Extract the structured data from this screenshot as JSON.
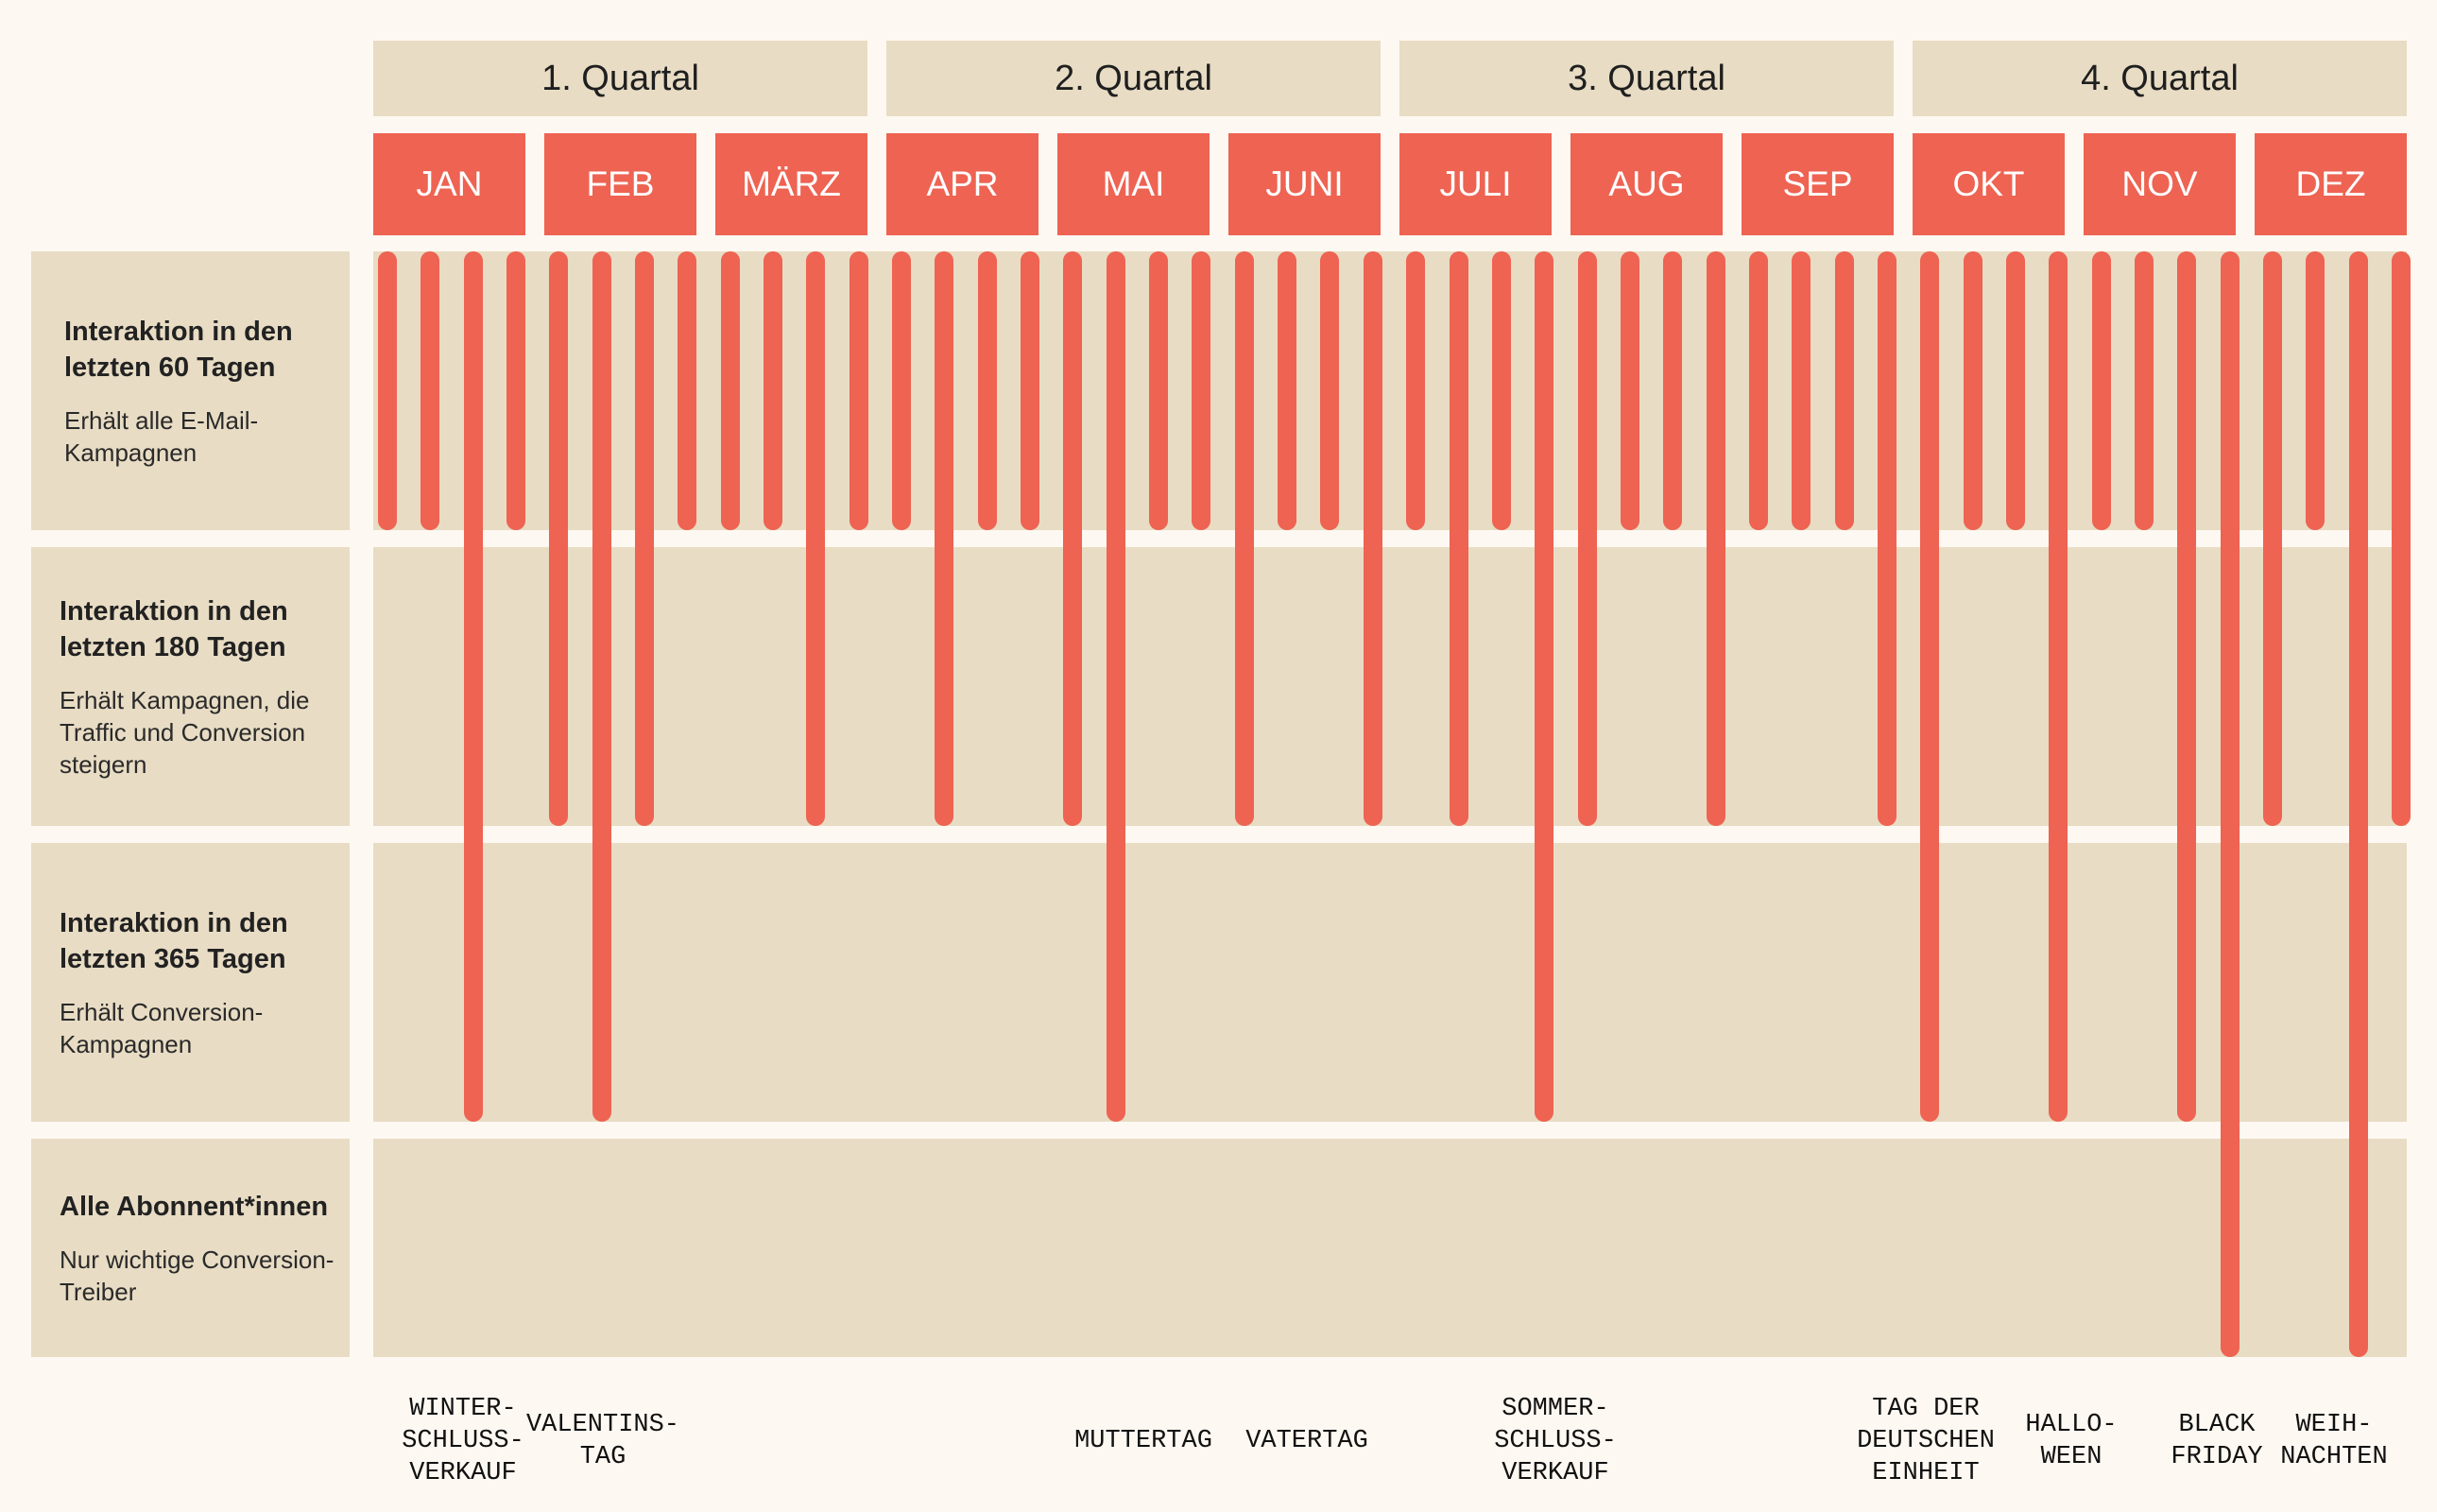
{
  "quarters": [
    "1. Quartal",
    "2. Quartal",
    "3. Quartal",
    "4. Quartal"
  ],
  "months": [
    "JAN",
    "FEB",
    "MÄRZ",
    "APR",
    "MAI",
    "JUNI",
    "JULI",
    "AUG",
    "SEP",
    "OKT",
    "NOV",
    "DEZ"
  ],
  "rows": [
    {
      "title": "Interaktion in den letzten 60 Tagen",
      "description": "Erhält alle E-Mail-Kampagnen"
    },
    {
      "title": "Interaktion in den letzten 180 Tagen",
      "description": "Erhält Kampagnen, die Traffic und Conversion steigern"
    },
    {
      "title": "Interaktion in den letzten 365 Tagen",
      "description": "Erhält Conversion-Kampagnen"
    },
    {
      "title": "Alle Abonnent*innen",
      "description": "Nur wichtige Conversion-Treiber"
    }
  ],
  "events": [
    {
      "label": "WINTER-\nSCHLUSS-\nVERKAUF"
    },
    {
      "label": "VALENTINS-\nTAG"
    },
    {
      "label": "MUTTERTAG"
    },
    {
      "label": "VATERTAG"
    },
    {
      "label": "SOMMER-\nSCHLUSS-\nVERKAUF"
    },
    {
      "label": "TAG DER\nDEUTSCHEN\nEINHEIT"
    },
    {
      "label": "HALLO-\nWEEN"
    },
    {
      "label": "BLACK\nFRIDAY"
    },
    {
      "label": "WEIH-\nNACHTEN"
    }
  ],
  "chart_data": {
    "type": "timeline",
    "columns": 48,
    "segments": [
      "Interaktion in den letzten 60 Tagen",
      "Interaktion in den letzten 180 Tagen",
      "Interaktion in den letzten 365 Tagen",
      "Alle Abonnent*innen"
    ],
    "campaign_reach": [
      1,
      1,
      3,
      1,
      2,
      3,
      2,
      1,
      1,
      1,
      2,
      1,
      1,
      2,
      1,
      1,
      2,
      3,
      1,
      1,
      2,
      1,
      1,
      2,
      1,
      2,
      1,
      3,
      2,
      1,
      1,
      2,
      1,
      1,
      1,
      2,
      3,
      1,
      1,
      3,
      1,
      1,
      3,
      4,
      2,
      1,
      4,
      2
    ],
    "event_columns": [
      2,
      5,
      17,
      21,
      27,
      36,
      39,
      42,
      46
    ]
  },
  "colors": {
    "accent": "#EE6352",
    "band": "#E8DCC4",
    "background": "#FDF8F1",
    "text": "#1F1F1F"
  }
}
